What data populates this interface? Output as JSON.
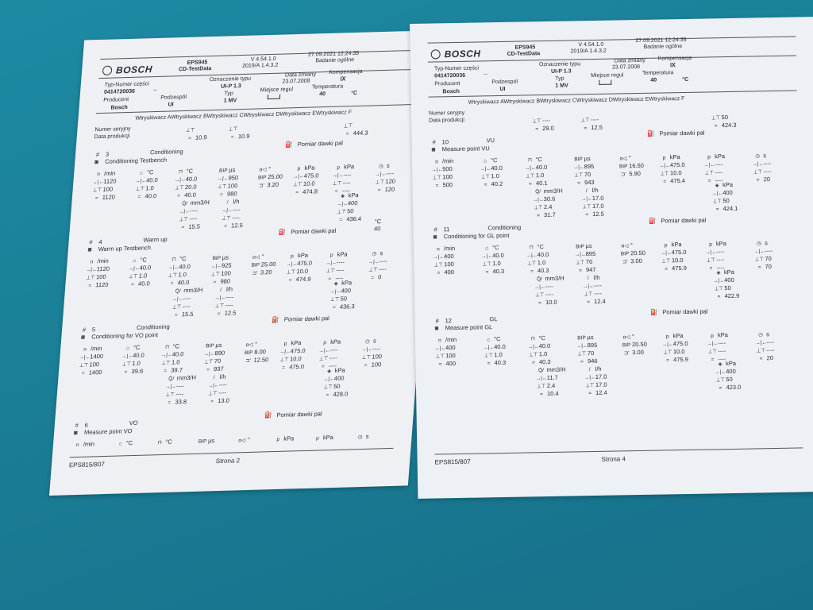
{
  "header": {
    "brand": "BOSCH",
    "device": "EPS945",
    "program": "CD-TestData",
    "version": "V 4.54.1.0",
    "version_sub": "2019/A 1.4.3.2",
    "datetime": "27.09.2021  12:24:35",
    "test_type": "Badanie ogólne",
    "part_no_label": "Typ-Numer części",
    "part_no": "0414720036",
    "part_no_suffix": "--",
    "type_label": "Oznaczenie typu",
    "type_value": "UI-P 1.3",
    "change_date_label": "Data zmiany",
    "change_date": "23.07.2008",
    "compensation_label": "Kompensacja",
    "compensation_value": "ⅠⅩ",
    "producer_label": "Producent",
    "producer": "Bosch",
    "subassembly_label": "Podzespól",
    "subassembly": "UI",
    "typ_label": "Typ",
    "typ_value": "1 MV",
    "control_label": "Miejsce regul",
    "temperature_label": "Temperatura",
    "temperature": "40",
    "temperature_unit": "°C",
    "injectors": "Wtryskiwacz AWtryskiwacz BWtryskiwacz CWtryskiwacz DWtryskiwacz EWtryskiwacz F",
    "serial_label": "Numer seryjny",
    "prod_date_label": "Data produkcji"
  },
  "measure_label": "Pomiar dawki pal",
  "units": {
    "n": "/min",
    "c": "°C",
    "us": "µs",
    "deg": "°",
    "kpa": "kPa",
    "s": "s",
    "mm3": "mm3/H",
    "lh": "l/h",
    "p": "p",
    "n_sym": "n",
    "bip": "BIP"
  },
  "pages": [
    {
      "footer_left": "EPS815/807",
      "footer_center": "Strona  2",
      "carry": {
        "a": [
          "",
          "",
          "10.9"
        ],
        "b": [
          "",
          "",
          "10.9"
        ],
        "c": [
          "",
          "",
          "444.3"
        ]
      },
      "sections": [
        {
          "num": "3",
          "mode": "Conditioning",
          "title": "Conditioning Testbench",
          "n": [
            "1120",
            "100",
            "1120"
          ],
          "t1": [
            "40.0",
            "1.0",
            "40.0"
          ],
          "t2": [
            "40.0",
            "20.0",
            "40.0"
          ],
          "bip": [
            "950",
            "100",
            "980"
          ],
          "alpha": [
            "25.00",
            "3.20"
          ],
          "p1": [
            "475.0",
            "10.0",
            "474.8"
          ],
          "p2": [
            "----",
            "----",
            "----"
          ],
          "tm": [
            "----",
            "120",
            "120"
          ],
          "q": [
            "----",
            "----",
            "15.5"
          ],
          "lh": [
            "----",
            "----",
            "12.5"
          ],
          "pr": [
            "400",
            "50",
            "436.4"
          ]
        },
        {
          "num": "4",
          "mode": "Warm up",
          "title": "Warm up Testbench",
          "extra_temp": "40",
          "n": [
            "1120",
            "100",
            "1120"
          ],
          "t1": [
            "40.0",
            "1.0",
            "40.0"
          ],
          "t2": [
            "40.0",
            "1.0",
            "40.0"
          ],
          "bip": [
            "925",
            "100",
            "980"
          ],
          "alpha": [
            "25.00",
            "3.20"
          ],
          "p1": [
            "475.0",
            "10.0",
            "474.9"
          ],
          "p2": [
            "----",
            "----",
            "----"
          ],
          "tm": [
            "----",
            "----",
            "0"
          ],
          "q": [
            "----",
            "----",
            "15.5"
          ],
          "lh": [
            "----",
            "----",
            "12.5"
          ],
          "pr": [
            "400",
            "50",
            "436.3"
          ]
        },
        {
          "num": "5",
          "mode": "Conditioning",
          "title": "Conditioning for VO point",
          "n": [
            "1400",
            "100",
            "1400"
          ],
          "t1": [
            "40.0",
            "1.0",
            "39.6"
          ],
          "t2": [
            "40.0",
            "1.0",
            "39.7"
          ],
          "bip": [
            "890",
            "70",
            "937"
          ],
          "alpha": [
            "8.00",
            "12.50"
          ],
          "p1": [
            "475.0",
            "10.0",
            "475.0"
          ],
          "p2": [
            "----",
            "----",
            "----"
          ],
          "tm": [
            "----",
            "100",
            "100"
          ],
          "q": [
            "----",
            "----",
            "33.8"
          ],
          "lh": [
            "----",
            "----",
            "13.0"
          ],
          "pr": [
            "400",
            "50",
            "428.0"
          ]
        },
        {
          "num": "6",
          "mode": "VO",
          "title": "Measure point VO",
          "headers_only": true
        }
      ]
    },
    {
      "footer_left": "EPS815/807",
      "footer_center": "Strona  4",
      "carry": {
        "a": [
          "",
          "----",
          "29.0"
        ],
        "b": [
          "",
          "----",
          "12.5"
        ],
        "c": [
          "",
          "50",
          "424.3"
        ]
      },
      "sections": [
        {
          "num": "10",
          "mode": "VU",
          "title": "Measure point VU",
          "n": [
            "500",
            "100",
            "500"
          ],
          "t1": [
            "40.0",
            "1.0",
            "40.2"
          ],
          "t2": [
            "40.0",
            "1.0",
            "40.1"
          ],
          "bip": [
            "895",
            "70",
            "943"
          ],
          "alpha": [
            "16.50",
            "5.90"
          ],
          "p1": [
            "475.0",
            "10.0",
            "475.4"
          ],
          "p2": [
            "----",
            "----",
            "----"
          ],
          "tm": [
            "----",
            "----",
            "20"
          ],
          "q": [
            "30.6",
            "2.4",
            "31.7"
          ],
          "lh": [
            "17.0",
            "17.0",
            "12.5"
          ],
          "pr": [
            "400",
            "50",
            "424.1"
          ]
        },
        {
          "num": "11",
          "mode": "Conditioning",
          "title": "Conditioning for GL point",
          "n": [
            "400",
            "100",
            "400"
          ],
          "t1": [
            "40.0",
            "1.0",
            "40.3"
          ],
          "t2": [
            "40.0",
            "1.0",
            "40.3"
          ],
          "bip": [
            "895",
            "70",
            "947"
          ],
          "alpha": [
            "20.50",
            "3.00"
          ],
          "p1": [
            "475.0",
            "10.0",
            "475.9"
          ],
          "p2": [
            "----",
            "----",
            "----"
          ],
          "tm": [
            "----",
            "70",
            "70"
          ],
          "q": [
            "----",
            "----",
            "10.0"
          ],
          "lh": [
            "----",
            "----",
            "12.4"
          ],
          "pr": [
            "400",
            "50",
            "422.9"
          ]
        },
        {
          "num": "12",
          "mode": "GL",
          "title": "Measure point GL",
          "n": [
            "400",
            "100",
            "400"
          ],
          "t1": [
            "40.0",
            "1.0",
            "40.3"
          ],
          "t2": [
            "40.0",
            "1.0",
            "40.3"
          ],
          "bip": [
            "895",
            "70",
            "946"
          ],
          "alpha": [
            "20.50",
            "3.00"
          ],
          "p1": [
            "475.0",
            "10.0",
            "475.9"
          ],
          "p2": [
            "----",
            "----",
            "----"
          ],
          "tm": [
            "----",
            "----",
            "20"
          ],
          "q": [
            "11.7",
            "2.4",
            "10.4"
          ],
          "lh": [
            "17.0",
            "17.0",
            "12.4"
          ],
          "pr": [
            "400",
            "50",
            "423.0"
          ]
        }
      ]
    }
  ]
}
